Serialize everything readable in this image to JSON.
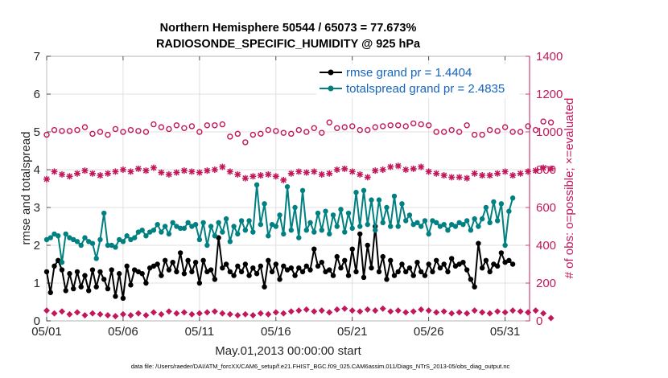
{
  "chart_data": {
    "type": "line",
    "title": "Northern Hemisphere 50544 / 65073 = 77.673%",
    "subtitle": "RADIOSONDE_SPECIFIC_HUMIDITY @ 925 hPa",
    "xlabel": "May.01,2013 00:00:00 start",
    "ylabel_left": "rmse and totalspread",
    "ylabel_right": "# of obs: o=possible; ×=evaluated",
    "footer": "data file: /Users/raeder/DAI/ATM_forcXX/CAM6_setup/f.e21.FHIST_BGC.f09_025.CAM6assim.011/Diags_NTrS_2013-05/obs_diag_output.nc",
    "x_unit": "days since 05/01 00Z (6-hourly samples)",
    "xlim": [
      0,
      31.6
    ],
    "xticks": [
      0,
      5,
      10,
      15,
      20,
      25,
      30
    ],
    "xtick_labels": [
      "05/01",
      "05/06",
      "05/11",
      "05/16",
      "05/21",
      "05/26",
      "05/31"
    ],
    "ylim_left": [
      0,
      7
    ],
    "yticks_left": [
      0,
      1,
      2,
      3,
      4,
      5,
      6,
      7
    ],
    "ylim_right": [
      0,
      1400
    ],
    "yticks_right": [
      0,
      200,
      400,
      600,
      800,
      1000,
      1200,
      1400
    ],
    "series": [
      {
        "name": "rmse",
        "legend": "rmse grand pr = 1.4404",
        "color": "#000000",
        "marker": "filled-circle",
        "axis": "left",
        "x_start": 0,
        "x_step": 0.25,
        "values": [
          1.3,
          0.75,
          1.45,
          1.6,
          1.35,
          0.8,
          1.25,
          0.85,
          1.3,
          0.9,
          1.2,
          0.8,
          1.35,
          0.9,
          1.3,
          1.1,
          0.85,
          1.35,
          0.65,
          1.25,
          0.6,
          1.45,
          0.95,
          1.35,
          1.3,
          1.25,
          1.0,
          1.4,
          1.45,
          1.5,
          1.2,
          1.6,
          1.35,
          1.55,
          1.3,
          1.8,
          1.25,
          1.6,
          1.3,
          1.55,
          1.0,
          1.6,
          1.3,
          1.35,
          1.1,
          2.2,
          1.4,
          1.5,
          1.3,
          1.2,
          1.45,
          1.3,
          1.5,
          1.2,
          1.4,
          1.25,
          1.45,
          0.9,
          1.6,
          1.3,
          1.5,
          1.1,
          1.45,
          1.35,
          1.4,
          1.2,
          1.4,
          1.3,
          1.45,
          1.35,
          1.9,
          1.45,
          1.55,
          1.3,
          1.35,
          1.2,
          1.7,
          1.4,
          1.6,
          1.2,
          1.9,
          1.3,
          2.3,
          1.15,
          2.0,
          1.4,
          2.5,
          1.3,
          1.7,
          1.1,
          1.6,
          1.2,
          1.3,
          1.5,
          1.3,
          1.4,
          1.2,
          1.55,
          1.3,
          1.2,
          1.5,
          1.3,
          1.6,
          1.4,
          1.5,
          1.3,
          1.65,
          1.45,
          1.5,
          1.55,
          1.35,
          1.1,
          0.9,
          2.05,
          1.4,
          1.6,
          1.3,
          1.5,
          1.45,
          1.8,
          1.55,
          1.6,
          1.5
        ]
      },
      {
        "name": "totalspread",
        "legend": "totalspread grand pr = 2.4835",
        "color": "#008080",
        "marker": "filled-circle",
        "axis": "left",
        "x_start": 0,
        "x_step": 0.25,
        "values": [
          2.15,
          2.2,
          2.3,
          2.25,
          1.55,
          2.3,
          2.2,
          2.15,
          2.1,
          2.0,
          2.2,
          2.1,
          2.05,
          1.65,
          2.15,
          2.85,
          2.0,
          2.0,
          1.95,
          2.15,
          2.1,
          2.25,
          2.15,
          2.2,
          2.35,
          2.4,
          2.25,
          2.35,
          2.4,
          2.55,
          2.35,
          2.5,
          2.3,
          2.6,
          2.5,
          2.45,
          2.45,
          2.6,
          2.5,
          2.55,
          2.15,
          2.6,
          2.0,
          2.5,
          2.25,
          2.6,
          2.35,
          2.7,
          2.1,
          2.5,
          2.3,
          2.65,
          2.4,
          2.65,
          2.35,
          3.6,
          2.55,
          3.1,
          2.25,
          2.55,
          2.5,
          2.8,
          2.3,
          3.55,
          2.4,
          3.0,
          2.2,
          3.45,
          2.4,
          2.6,
          2.35,
          2.85,
          2.4,
          2.9,
          2.3,
          2.8,
          2.5,
          2.95,
          2.35,
          2.85,
          2.45,
          3.4,
          2.5,
          3.45,
          2.55,
          3.2,
          2.4,
          3.2,
          2.6,
          3.0,
          2.5,
          3.3,
          2.5,
          3.1,
          2.65,
          2.8,
          2.55,
          2.6,
          2.5,
          2.65,
          2.3,
          2.65,
          2.6,
          2.5,
          2.55,
          2.4,
          2.55,
          2.5,
          2.6,
          2.55,
          2.65,
          2.4,
          2.7,
          2.5,
          2.7,
          3.0,
          2.6,
          3.15,
          2.65,
          3.1,
          2.0,
          2.9,
          3.25
        ]
      },
      {
        "name": "obs possible",
        "color": "#c2185b",
        "marker": "open-circle",
        "axis": "right",
        "x_start": 0,
        "x_step": 0.5,
        "values": [
          985,
          1010,
          1005,
          1005,
          1010,
          1025,
          990,
          1000,
          985,
          1015,
          1000,
          1010,
          1005,
          1000,
          1040,
          1025,
          1015,
          1035,
          1020,
          1030,
          1000,
          1035,
          1035,
          1040,
          975,
          990,
          945,
          985,
          990,
          1010,
          1005,
          995,
          990,
          1010,
          1000,
          1020,
          995,
          1050,
          1020,
          1025,
          1030,
          1010,
          1010,
          1025,
          1030,
          1035,
          1035,
          1030,
          1045,
          1040,
          1035,
          1000,
          1000,
          1010,
          1000,
          1035,
          985,
          985,
          1010,
          1005,
          1025,
          1000,
          1000,
          1030,
          1010,
          1055,
          1050
        ]
      },
      {
        "name": "obs evaluated",
        "color": "#c2185b",
        "marker": "asterisk",
        "axis": "right",
        "x_start": 0,
        "x_step": 0.5,
        "values": [
          750,
          790,
          775,
          765,
          780,
          795,
          780,
          770,
          780,
          790,
          800,
          790,
          805,
          795,
          810,
          785,
          775,
          785,
          795,
          790,
          785,
          795,
          800,
          815,
          790,
          775,
          755,
          765,
          770,
          775,
          765,
          745,
          780,
          790,
          785,
          790,
          775,
          780,
          800,
          805,
          790,
          775,
          760,
          795,
          800,
          815,
          820,
          800,
          805,
          815,
          790,
          780,
          770,
          760,
          760,
          755,
          780,
          770,
          770,
          780,
          790,
          770,
          780,
          790,
          795,
          810,
          805
        ]
      },
      {
        "name": "obs rejected",
        "color": "#c2185b",
        "marker": "filled-diamond",
        "axis": "right",
        "x_start": 0,
        "x_step": 0.5,
        "values": [
          55,
          40,
          50,
          35,
          45,
          30,
          40,
          35,
          30,
          25,
          35,
          30,
          40,
          30,
          45,
          35,
          50,
          40,
          45,
          35,
          40,
          45,
          50,
          40,
          35,
          30,
          35,
          30,
          40,
          35,
          45,
          40,
          50,
          55,
          60,
          50,
          55,
          45,
          60,
          65,
          55,
          50,
          60,
          55,
          65,
          50,
          55,
          45,
          50,
          60,
          55,
          45,
          50,
          40,
          45,
          40,
          55,
          45,
          40,
          50,
          45,
          55,
          50,
          45,
          55,
          40,
          15
        ]
      }
    ]
  }
}
